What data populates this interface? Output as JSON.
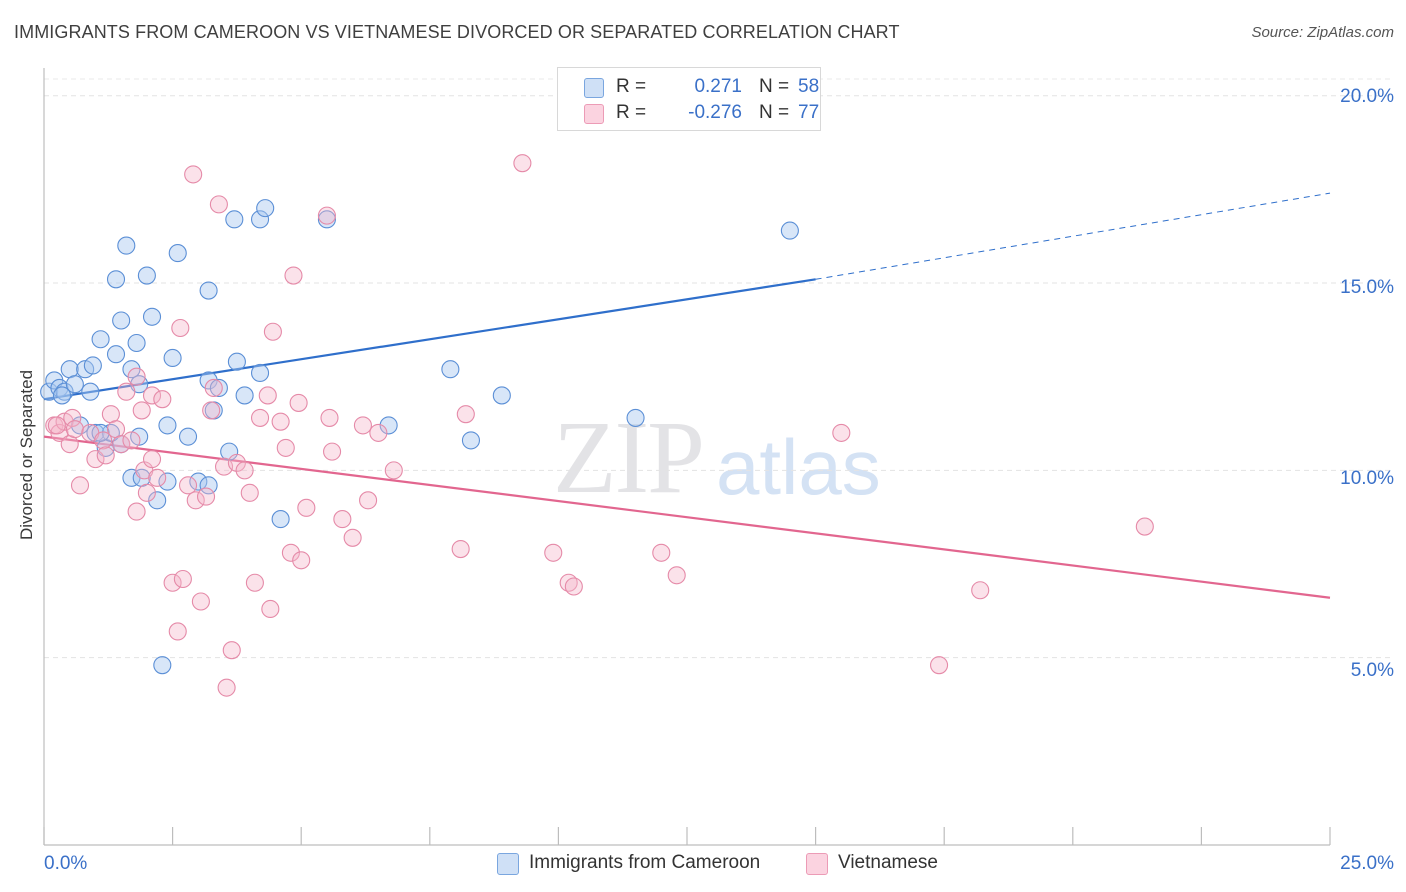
{
  "header": {
    "title": "IMMIGRANTS FROM CAMEROON VS VIETNAMESE DIVORCED OR SEPARATED CORRELATION CHART",
    "source": "Source: ZipAtlas.com"
  },
  "watermark": {
    "zip": "ZIP",
    "atlas": "atlas"
  },
  "legend": {
    "rows": [
      {
        "r_label": "R =",
        "r_value": "0.271",
        "n_label": "N =",
        "n_value": "58",
        "color": "#a9c7ef"
      },
      {
        "r_label": "R =",
        "r_value": "-0.276",
        "n_label": "N =",
        "n_value": "77",
        "color": "#f6b6cb"
      }
    ]
  },
  "bottom_legend": {
    "items": [
      {
        "label": "Immigrants from Cameroon",
        "color": "#a9c7ef"
      },
      {
        "label": "Vietnamese",
        "color": "#f6b6cb"
      }
    ]
  },
  "axes": {
    "y_label": "Divorced or Separated",
    "y_ticks": [
      "20.0%",
      "15.0%",
      "10.0%",
      "5.0%"
    ],
    "x_tick_left": "0.0%",
    "x_tick_right": "25.0%"
  },
  "colors": {
    "blue_fill": "#a9c7ef",
    "blue_stroke": "#5b8fd6",
    "blue_line": "#2f6fcb",
    "pink_fill": "#f6b6cb",
    "pink_stroke": "#e58aa8",
    "pink_line": "#e2668f",
    "tick_text": "#3a70c8"
  },
  "chart_data": {
    "type": "scatter",
    "title": "IMMIGRANTS FROM CAMEROON VS VIETNAMESE DIVORCED OR SEPARATED CORRELATION CHART",
    "xlabel": "",
    "ylabel": "Divorced or Separated",
    "xlim": [
      0,
      25
    ],
    "ylim": [
      0,
      20.5
    ],
    "y_ticks": [
      5,
      10,
      15,
      20
    ],
    "grid": "horizontal dashed",
    "legend_position": "top-center",
    "series": [
      {
        "name": "Immigrants from Cameroon",
        "R": 0.271,
        "N": 58,
        "trend": {
          "x0": 0.0,
          "y0": 11.9,
          "x1": 15.0,
          "y1": 15.1,
          "dashed_to_x": 25.0,
          "dashed_to_y": 17.4
        },
        "points": [
          [
            0.1,
            12.1
          ],
          [
            0.2,
            12.4
          ],
          [
            0.3,
            12.2
          ],
          [
            0.4,
            12.1
          ],
          [
            0.5,
            12.7
          ],
          [
            0.6,
            12.3
          ],
          [
            0.8,
            12.7
          ],
          [
            0.9,
            12.1
          ],
          [
            0.95,
            12.8
          ],
          [
            0.7,
            11.2
          ],
          [
            1.0,
            11.0
          ],
          [
            1.1,
            13.5
          ],
          [
            1.4,
            13.1
          ],
          [
            1.4,
            15.1
          ],
          [
            1.5,
            14.0
          ],
          [
            1.6,
            16.0
          ],
          [
            1.7,
            12.7
          ],
          [
            1.8,
            13.4
          ],
          [
            1.85,
            12.3
          ],
          [
            2.0,
            15.2
          ],
          [
            2.1,
            14.1
          ],
          [
            2.4,
            11.2
          ],
          [
            2.5,
            13.0
          ],
          [
            2.6,
            15.8
          ],
          [
            2.8,
            10.9
          ],
          [
            3.2,
            14.8
          ],
          [
            3.2,
            12.4
          ],
          [
            3.3,
            11.6
          ],
          [
            3.4,
            12.2
          ],
          [
            3.6,
            10.5
          ],
          [
            3.7,
            16.7
          ],
          [
            3.75,
            12.9
          ],
          [
            3.9,
            12.0
          ],
          [
            4.2,
            16.7
          ],
          [
            4.3,
            17.0
          ],
          [
            4.2,
            12.6
          ],
          [
            5.5,
            16.7
          ],
          [
            6.7,
            11.2
          ],
          [
            7.9,
            12.7
          ],
          [
            8.3,
            10.8
          ],
          [
            8.9,
            12.0
          ],
          [
            11.5,
            11.4
          ],
          [
            14.5,
            16.4
          ],
          [
            11.7,
            19.5
          ],
          [
            2.3,
            4.8
          ],
          [
            4.6,
            8.7
          ],
          [
            2.2,
            9.2
          ],
          [
            2.4,
            9.7
          ],
          [
            1.7,
            9.8
          ],
          [
            1.9,
            9.8
          ],
          [
            3.0,
            9.7
          ],
          [
            3.2,
            9.6
          ],
          [
            1.2,
            10.6
          ],
          [
            1.5,
            10.7
          ],
          [
            1.85,
            10.9
          ],
          [
            1.3,
            11.0
          ],
          [
            1.1,
            11.0
          ],
          [
            0.35,
            12.0
          ]
        ]
      },
      {
        "name": "Vietnamese",
        "R": -0.276,
        "N": 77,
        "trend": {
          "x0": 0.0,
          "y0": 10.9,
          "x1": 25.0,
          "y1": 6.6
        },
        "points": [
          [
            0.2,
            11.2
          ],
          [
            0.3,
            11.0
          ],
          [
            0.4,
            11.3
          ],
          [
            0.5,
            10.7
          ],
          [
            0.55,
            11.4
          ],
          [
            0.6,
            11.1
          ],
          [
            0.7,
            9.6
          ],
          [
            0.9,
            11.0
          ],
          [
            1.0,
            10.3
          ],
          [
            1.15,
            10.8
          ],
          [
            1.2,
            10.4
          ],
          [
            1.3,
            11.5
          ],
          [
            1.4,
            11.1
          ],
          [
            1.5,
            10.7
          ],
          [
            1.6,
            12.1
          ],
          [
            1.7,
            10.8
          ],
          [
            1.8,
            12.5
          ],
          [
            1.8,
            8.9
          ],
          [
            1.9,
            11.6
          ],
          [
            1.95,
            10.0
          ],
          [
            2.0,
            9.4
          ],
          [
            2.1,
            10.3
          ],
          [
            2.1,
            12.0
          ],
          [
            2.2,
            9.8
          ],
          [
            2.3,
            11.9
          ],
          [
            2.5,
            7.0
          ],
          [
            2.6,
            5.7
          ],
          [
            2.65,
            13.8
          ],
          [
            2.7,
            7.1
          ],
          [
            2.8,
            9.6
          ],
          [
            2.9,
            17.9
          ],
          [
            2.95,
            9.2
          ],
          [
            3.05,
            6.5
          ],
          [
            3.15,
            9.3
          ],
          [
            3.25,
            11.6
          ],
          [
            3.3,
            12.2
          ],
          [
            3.4,
            17.1
          ],
          [
            3.5,
            10.1
          ],
          [
            3.55,
            4.2
          ],
          [
            3.65,
            5.2
          ],
          [
            3.75,
            10.2
          ],
          [
            3.9,
            10.0
          ],
          [
            4.0,
            9.4
          ],
          [
            4.1,
            7.0
          ],
          [
            4.2,
            11.4
          ],
          [
            4.35,
            12.0
          ],
          [
            4.4,
            6.3
          ],
          [
            4.45,
            13.7
          ],
          [
            4.6,
            11.3
          ],
          [
            4.7,
            10.6
          ],
          [
            4.8,
            7.8
          ],
          [
            4.85,
            15.2
          ],
          [
            4.95,
            11.8
          ],
          [
            5.0,
            7.6
          ],
          [
            5.1,
            9.0
          ],
          [
            5.5,
            16.8
          ],
          [
            5.55,
            11.4
          ],
          [
            5.6,
            10.5
          ],
          [
            5.8,
            8.7
          ],
          [
            6.0,
            8.2
          ],
          [
            6.2,
            11.2
          ],
          [
            6.3,
            9.2
          ],
          [
            6.5,
            11.0
          ],
          [
            6.8,
            10.0
          ],
          [
            8.1,
            7.9
          ],
          [
            8.2,
            11.5
          ],
          [
            9.3,
            18.2
          ],
          [
            9.9,
            7.8
          ],
          [
            10.2,
            7.0
          ],
          [
            10.3,
            6.9
          ],
          [
            12.0,
            7.8
          ],
          [
            12.3,
            7.2
          ],
          [
            15.5,
            11.0
          ],
          [
            17.4,
            4.8
          ],
          [
            18.2,
            6.8
          ],
          [
            21.4,
            8.5
          ],
          [
            0.25,
            11.2
          ]
        ]
      }
    ]
  }
}
